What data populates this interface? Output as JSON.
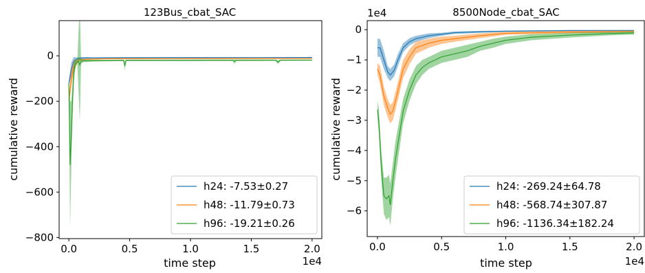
{
  "chart_data": [
    {
      "type": "line",
      "title": "123Bus_cbat_SAC",
      "xlabel": "time step",
      "ylabel": "cumulative reward",
      "x_multiplier_label": "1e4",
      "xlim": [
        -0.08,
        2.08
      ],
      "ylim": [
        -805,
        155
      ],
      "xticks": [
        0.0,
        0.5,
        1.0,
        1.5,
        2.0
      ],
      "xtick_labels": [
        "0.0",
        "0.5",
        "1.0",
        "1.5",
        "2.0"
      ],
      "yticks": [
        0,
        -200,
        -400,
        -600,
        -800
      ],
      "ytick_labels": [
        "0",
        "−200",
        "−400",
        "−600",
        "−800"
      ],
      "legend_position": "lower-right",
      "series": [
        {
          "name": "h24: -7.53±0.27",
          "color": "#1f77b4",
          "x": [
            0.0,
            0.02,
            0.04,
            0.06,
            0.08,
            0.1,
            0.15,
            0.2,
            0.3,
            0.5,
            1.0,
            1.5,
            2.0
          ],
          "y": [
            -120,
            -60,
            -25,
            -15,
            -12,
            -10,
            -9,
            -9,
            -8.5,
            -8,
            -7.8,
            -7.6,
            -7.5
          ],
          "band": [
            10,
            30,
            20,
            8,
            5,
            4,
            3,
            2,
            2,
            2,
            1,
            1,
            1
          ]
        },
        {
          "name": "h48: -11.79±0.73",
          "color": "#ff7f0e",
          "x": [
            0.0,
            0.02,
            0.04,
            0.06,
            0.08,
            0.1,
            0.15,
            0.2,
            0.3,
            0.5,
            1.0,
            1.5,
            2.0
          ],
          "y": [
            -200,
            -100,
            -50,
            -30,
            -20,
            -17,
            -15,
            -14,
            -13,
            -12.5,
            -12,
            -11.9,
            -11.8
          ],
          "band": [
            20,
            40,
            25,
            15,
            6,
            4,
            3,
            2,
            2,
            2,
            1,
            1,
            1
          ]
        },
        {
          "name": "h96: -19.21±0.26",
          "color": "#2ca02c",
          "x": [
            0.0,
            0.01,
            0.02,
            0.03,
            0.04,
            0.05,
            0.06,
            0.07,
            0.08,
            0.09,
            0.1,
            0.12,
            0.15,
            0.2,
            0.3,
            0.45,
            0.46,
            0.47,
            0.5,
            0.7,
            1.0,
            1.2,
            1.35,
            1.36,
            1.38,
            1.4,
            1.7,
            1.72,
            1.74,
            2.0
          ],
          "y": [
            -120,
            -480,
            -350,
            -200,
            -80,
            -40,
            -30,
            -26,
            -25,
            -40,
            -24,
            -22,
            -22,
            -21,
            -21,
            -20,
            -45,
            -20,
            -20,
            -20,
            -20,
            -19.5,
            -19.5,
            -25,
            -19.5,
            -19.5,
            -19.3,
            -28,
            -19.3,
            -19.2
          ],
          "band": [
            20,
            280,
            150,
            80,
            40,
            25,
            12,
            8,
            140,
            250,
            10,
            6,
            5,
            4,
            3,
            3,
            20,
            3,
            3,
            3,
            3,
            3,
            3,
            10,
            3,
            3,
            3,
            8,
            3,
            2
          ]
        }
      ]
    },
    {
      "type": "line",
      "title": "8500Node_cbat_SAC",
      "xlabel": "time step",
      "ylabel": "cumulative reward",
      "x_multiplier_label": "1e4",
      "y_multiplier_label": "1e4",
      "xlim": [
        -0.08,
        2.08
      ],
      "ylim": [
        -6.85,
        0.3
      ],
      "xticks": [
        0.0,
        0.5,
        1.0,
        1.5,
        2.0
      ],
      "xtick_labels": [
        "0.0",
        "0.5",
        "1.0",
        "1.5",
        "2.0"
      ],
      "yticks": [
        0,
        -1,
        -2,
        -3,
        -4,
        -5,
        -6
      ],
      "ytick_labels": [
        "0",
        "−1",
        "−2",
        "−3",
        "−4",
        "−5",
        "−6"
      ],
      "legend_position": "lower-right",
      "series": [
        {
          "name": "h24: -269.24±64.78",
          "color": "#1f77b4",
          "x": [
            0.0,
            0.02,
            0.05,
            0.08,
            0.1,
            0.13,
            0.16,
            0.2,
            0.25,
            0.3,
            0.4,
            0.5,
            0.6,
            0.8,
            1.0,
            1.5,
            2.0
          ],
          "y": [
            -0.6,
            -0.6,
            -1.0,
            -1.4,
            -1.5,
            -1.35,
            -1.0,
            -0.6,
            -0.4,
            -0.3,
            -0.2,
            -0.15,
            -0.1,
            -0.07,
            -0.05,
            -0.03,
            -0.027
          ],
          "band": [
            0.3,
            0.3,
            0.3,
            0.2,
            0.2,
            0.2,
            0.2,
            0.15,
            0.12,
            0.1,
            0.08,
            0.05,
            0.04,
            0.03,
            0.02,
            0.02,
            0.01
          ]
        },
        {
          "name": "h48: -568.74±307.87",
          "color": "#ff7f0e",
          "x": [
            0.0,
            0.02,
            0.05,
            0.08,
            0.1,
            0.12,
            0.15,
            0.2,
            0.25,
            0.3,
            0.4,
            0.5,
            0.6,
            0.8,
            1.0,
            1.5,
            2.0
          ],
          "y": [
            -1.3,
            -1.5,
            -2.2,
            -2.6,
            -2.8,
            -2.7,
            -2.2,
            -1.3,
            -0.9,
            -0.6,
            -0.45,
            -0.35,
            -0.3,
            -0.2,
            -0.12,
            -0.08,
            -0.06
          ],
          "band": [
            0.2,
            0.3,
            0.3,
            0.3,
            0.3,
            0.3,
            0.3,
            0.3,
            0.25,
            0.2,
            0.15,
            0.12,
            0.1,
            0.08,
            0.05,
            0.04,
            0.03
          ]
        },
        {
          "name": "h96: -1136.34±182.24",
          "color": "#2ca02c",
          "x": [
            0.0,
            0.01,
            0.03,
            0.05,
            0.07,
            0.09,
            0.1,
            0.12,
            0.14,
            0.17,
            0.2,
            0.25,
            0.3,
            0.35,
            0.4,
            0.5,
            0.6,
            0.7,
            0.8,
            0.9,
            1.0,
            1.2,
            1.5,
            1.8,
            2.0
          ],
          "y": [
            -2.65,
            -3.0,
            -4.5,
            -5.5,
            -5.6,
            -5.5,
            -5.8,
            -5.0,
            -4.3,
            -3.5,
            -2.7,
            -2.0,
            -1.5,
            -1.25,
            -1.1,
            -0.9,
            -0.8,
            -0.7,
            -0.55,
            -0.45,
            -0.35,
            -0.25,
            -0.18,
            -0.13,
            -0.11
          ],
          "band": [
            0.3,
            0.4,
            0.5,
            0.6,
            0.7,
            0.7,
            0.7,
            0.6,
            0.6,
            0.5,
            0.4,
            0.35,
            0.3,
            0.25,
            0.2,
            0.2,
            0.2,
            0.2,
            0.15,
            0.15,
            0.12,
            0.1,
            0.08,
            0.06,
            0.05
          ]
        }
      ]
    }
  ]
}
